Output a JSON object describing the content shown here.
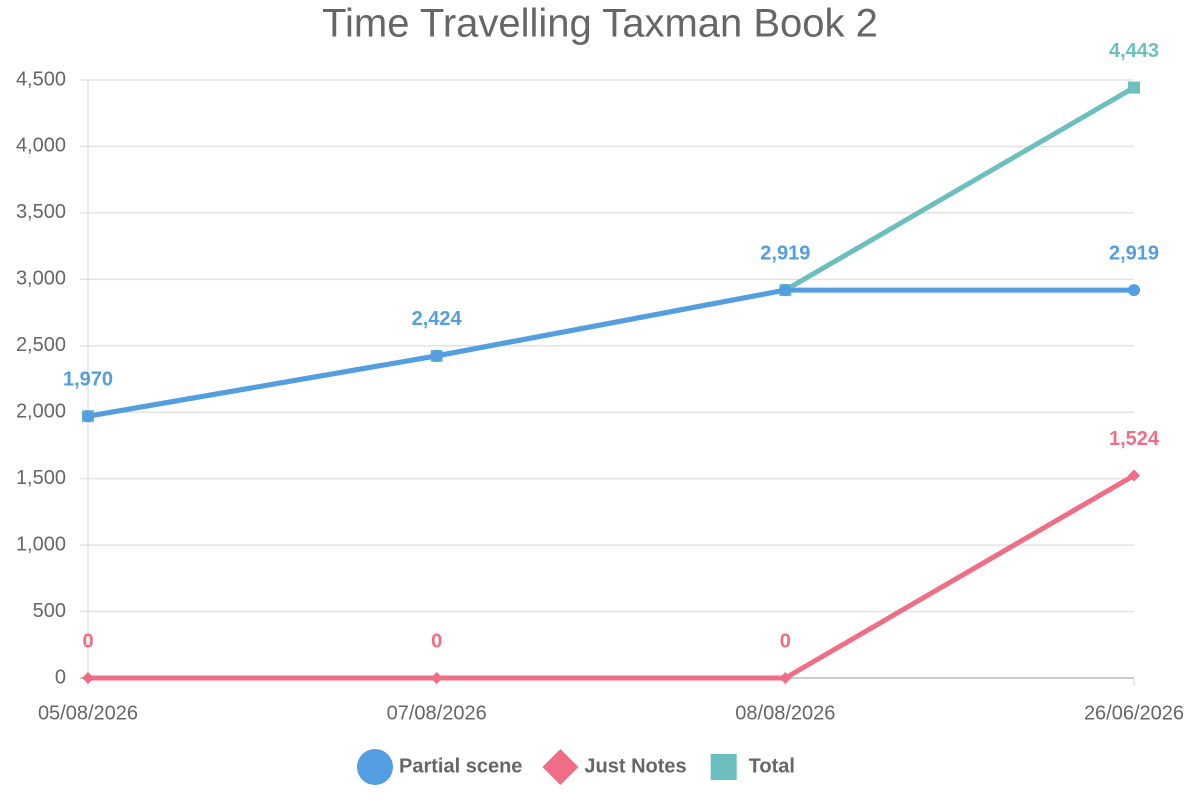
{
  "chart_data": {
    "type": "line",
    "title": "Time Travelling Taxman Book 2",
    "categories": [
      "05/08/2026",
      "07/08/2026",
      "08/08/2026",
      "26/06/2026"
    ],
    "series": [
      {
        "name": "Partial scene",
        "color": "#539ee0",
        "marker": "circle",
        "values": [
          1970,
          2424,
          2919,
          2919
        ],
        "value_labels": [
          "1,970",
          "2,424",
          "2,919",
          "2,919"
        ]
      },
      {
        "name": "Just Notes",
        "color": "#ef6e85",
        "marker": "diamond",
        "values": [
          0,
          0,
          0,
          1524
        ],
        "value_labels": [
          "0",
          "0",
          "0",
          "1,524"
        ]
      },
      {
        "name": "Total",
        "color": "#6cbfbf",
        "marker": "square",
        "values": [
          1970,
          2424,
          2919,
          4443
        ],
        "value_labels": [
          "1,970",
          "2,424",
          "2,919",
          "4,443"
        ]
      }
    ],
    "ylim": [
      0,
      4500
    ],
    "yticks": [
      0,
      500,
      {
        "value": 1000,
        "label": "1,000"
      },
      {
        "value": 1500,
        "label": "1,500"
      },
      {
        "value": 2000,
        "label": "2,000"
      },
      {
        "value": 2500,
        "label": "2,500"
      },
      {
        "value": 3000,
        "label": "3,000"
      },
      {
        "value": 3500,
        "label": "3,500"
      },
      {
        "value": 4000,
        "label": "4,000"
      },
      {
        "value": 4500,
        "label": "4,500"
      }
    ],
    "grid": true,
    "legend": "bottom"
  }
}
